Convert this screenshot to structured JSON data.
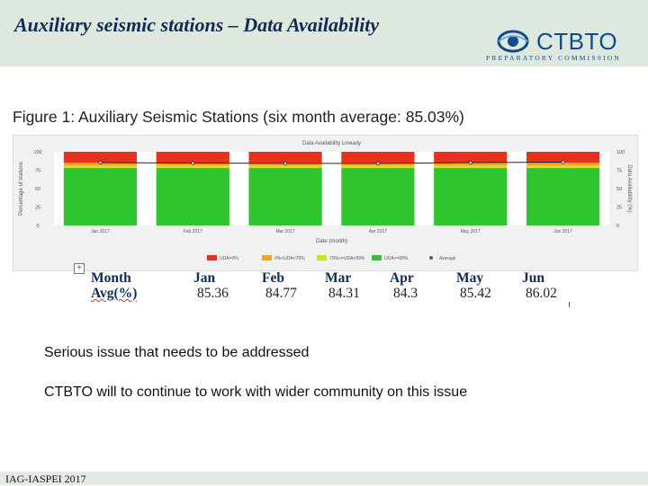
{
  "slide": {
    "title": "Auxiliary seismic stations – Data Availability",
    "logo_text": "CTBTO",
    "logo_subtitle": "PREPARATORY COMMISSION",
    "figure_caption": "Figure 1: Auxiliary Seismic Stations (six month average:  85.03%)",
    "notes": [
      "Serious issue that needs to be addressed",
      "CTBTO will to continue to work with wider community on this issue"
    ],
    "footer": "IAG-IASPEI 2017"
  },
  "table": {
    "header_label": "Month",
    "row_label": "Avg(%)",
    "months": [
      "Jan",
      "Feb",
      "Mar",
      "Apr",
      "May",
      "Jun"
    ],
    "averages": [
      "85.36",
      "84.77",
      "84.31",
      "84.3",
      "85.42",
      "86.02"
    ]
  },
  "chart_data": {
    "type": "bar",
    "title": "Data Availability Linearly",
    "xlabel": "Date (month)",
    "ylabel": "Percentage of stations",
    "ylabel_right": "Data Availability (%)",
    "categories": [
      "Jan 2017",
      "Feb 2017",
      "Mar 2017",
      "Apr 2017",
      "May 2017",
      "Jun 2017"
    ],
    "ylim": [
      0,
      100
    ],
    "yticks": [
      0,
      25,
      50,
      75,
      100
    ],
    "yticks_right": [
      0,
      25,
      50,
      75,
      100
    ],
    "stacked": true,
    "series": [
      {
        "name": "UDA>=99%",
        "color": "#2fc52f",
        "values": [
          78,
          78,
          78,
          78,
          78,
          78
        ]
      },
      {
        "name": "70%<=UDA<99%",
        "color": "#c8e62c",
        "values": [
          3,
          3,
          3,
          3,
          3,
          3
        ]
      },
      {
        "name": "0%<UDA<70%",
        "color": "#f5a623",
        "values": [
          4,
          4,
          4,
          4,
          4,
          4
        ]
      },
      {
        "name": "UDA=0%",
        "color": "#e8311f",
        "values": [
          15,
          15,
          15,
          15,
          15,
          15
        ]
      }
    ],
    "average": {
      "name": "Average",
      "color": "#3a5fa8",
      "values": [
        85.36,
        84.77,
        84.31,
        84.3,
        85.42,
        86.02
      ]
    },
    "legend_position": "bottom",
    "grid": false
  }
}
